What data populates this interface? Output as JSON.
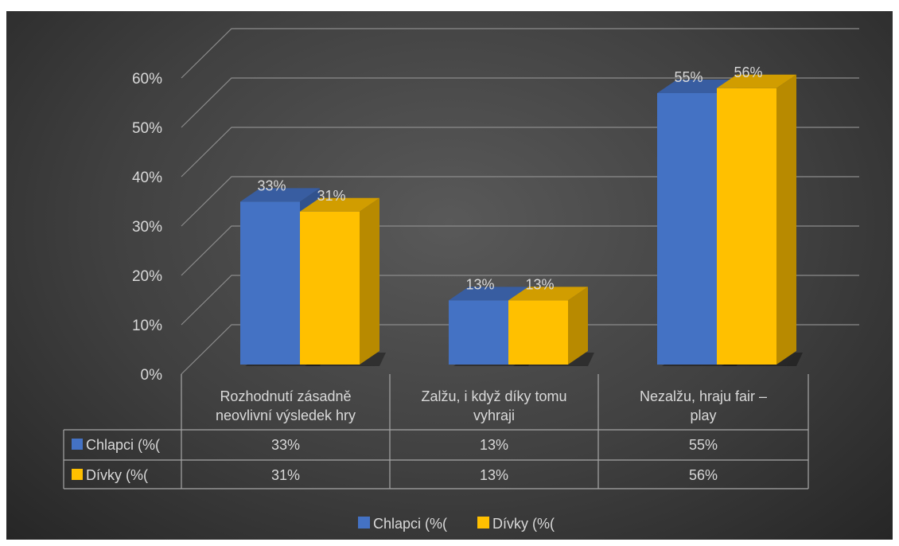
{
  "chart_data": {
    "type": "bar",
    "title": "",
    "xlabel": "",
    "ylabel": "",
    "ylim": [
      0,
      0.6
    ],
    "y_ticks": [
      "0%",
      "10%",
      "20%",
      "30%",
      "40%",
      "50%",
      "60%"
    ],
    "categories": [
      [
        "Rozhodnutí zásadně",
        "neovlivní výsledek hry"
      ],
      [
        "Zalžu, i když díky tomu",
        "vyhraji"
      ],
      [
        "Nezalžu, hraju fair –",
        "play"
      ]
    ],
    "series": [
      {
        "name": "Chlapci (%(",
        "values": [
          0.33,
          0.13,
          0.55
        ],
        "labels": [
          "33%",
          "13%",
          "55%"
        ],
        "color": "#4472c4"
      },
      {
        "name": "Dívky (%(",
        "values": [
          0.31,
          0.13,
          0.56
        ],
        "labels": [
          "31%",
          "13%",
          "56%"
        ],
        "color": "#ffc000"
      }
    ],
    "data_table": true,
    "legend": "bottom",
    "grid": true,
    "style": "3d-clustered-column"
  }
}
